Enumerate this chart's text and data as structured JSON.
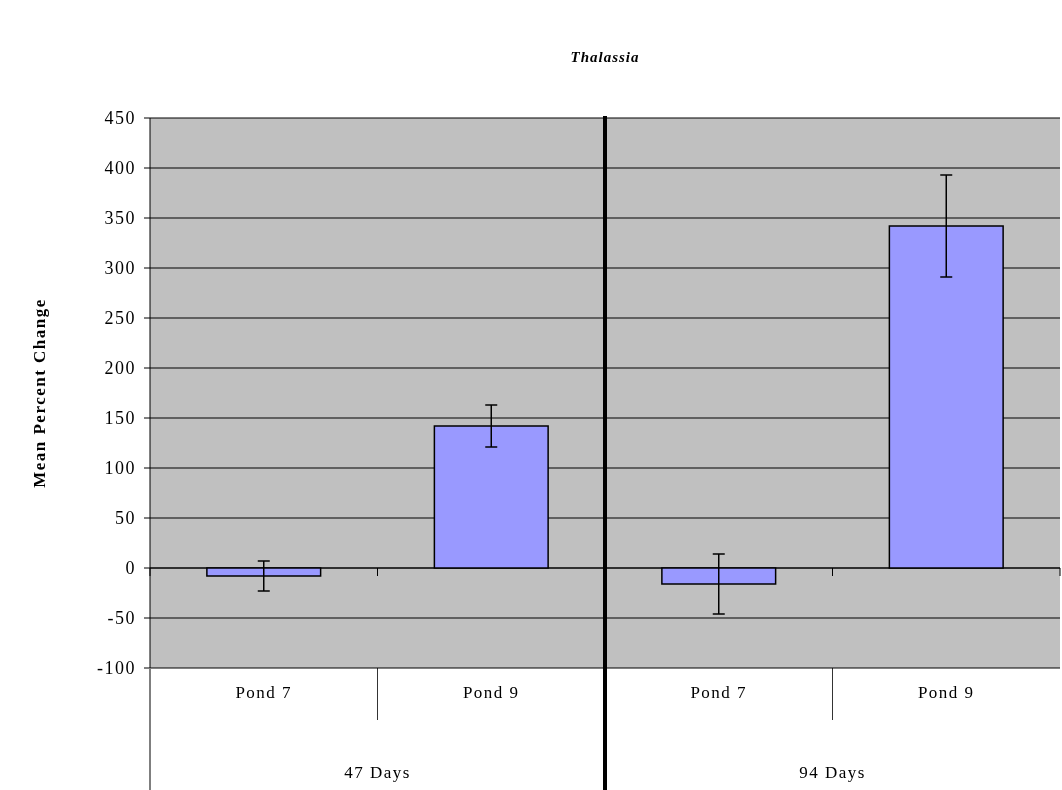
{
  "chart_data": {
    "type": "bar",
    "title": "Thalassia",
    "ylabel": "Mean Percent Change",
    "categories": [
      "Pond 7",
      "Pond 9",
      "Pond 7",
      "Pond 9"
    ],
    "annotations": [
      "47 Days",
      "94 Days"
    ],
    "series": [
      {
        "color": "#9999ff",
        "values": [
          -8,
          142,
          -16,
          342
        ],
        "errors": [
          15,
          21,
          30,
          51
        ]
      }
    ],
    "ylim": [
      -100,
      450
    ],
    "yticks": [
      -100,
      -50,
      0,
      50,
      100,
      150,
      200,
      250,
      300,
      350,
      400,
      450
    ],
    "grid": "y"
  }
}
